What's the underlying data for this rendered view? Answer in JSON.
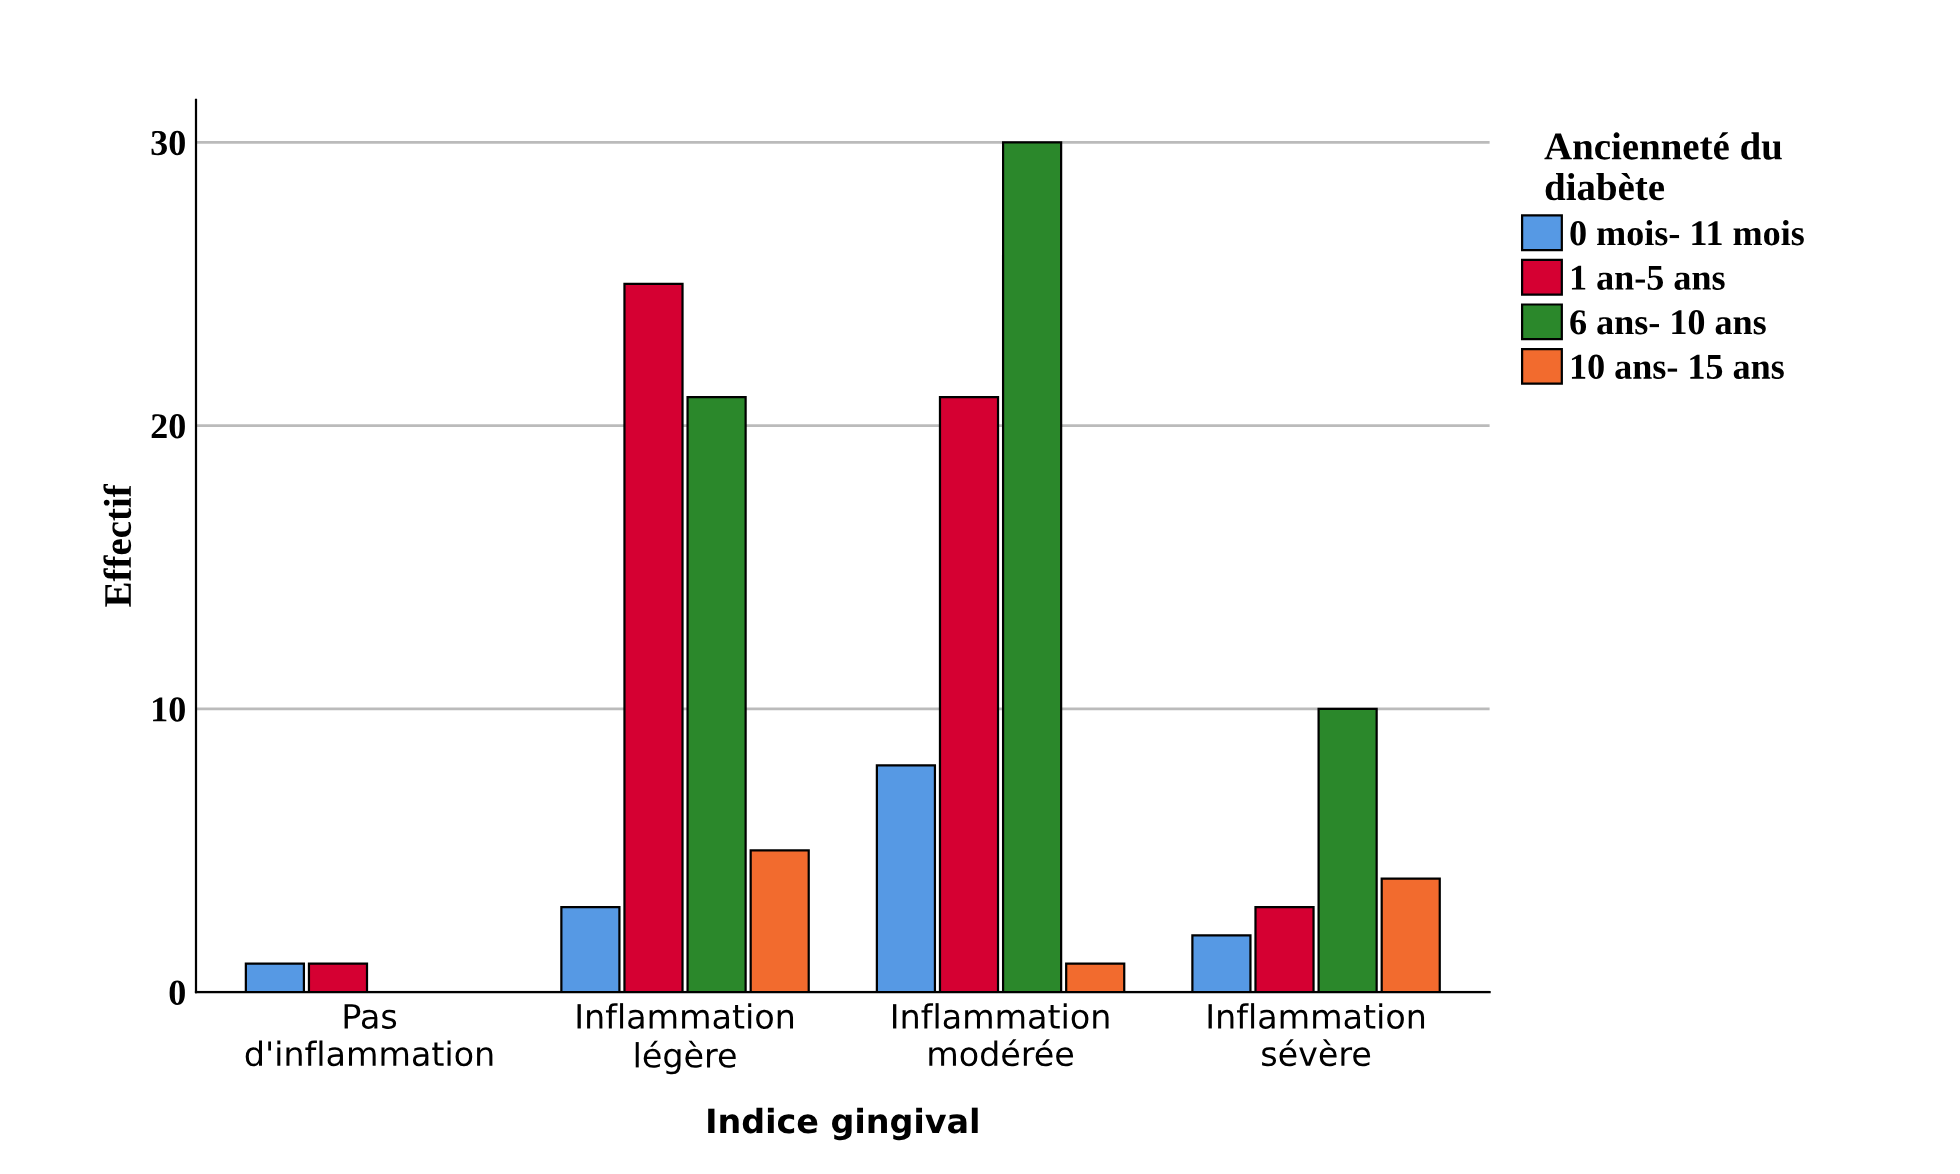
{
  "chart_data": {
    "type": "bar",
    "xlabel": "Indice gingival",
    "ylabel": "Effectif",
    "legend_title": "Ancienneté du\ndiabète",
    "categories": [
      "Pas\nd'inflammation",
      "Inflammation\nlégère",
      "Inflammation\nmodérée",
      "Inflammation\nsévère"
    ],
    "series": [
      {
        "name": "0 mois- 11 mois",
        "color": "#5699e4",
        "values": [
          1,
          3,
          8,
          2
        ]
      },
      {
        "name": "1 an-5 ans",
        "color": "#d50032",
        "values": [
          1,
          25,
          21,
          3
        ]
      },
      {
        "name": "6 ans- 10 ans",
        "color": "#2b882b",
        "values": [
          null,
          21,
          30,
          10
        ]
      },
      {
        "name": "10 ans- 15 ans",
        "color": "#f26b2e",
        "values": [
          null,
          5,
          1,
          4
        ]
      }
    ],
    "ylim": [
      0,
      31.5
    ],
    "yticks": [
      0,
      10,
      20,
      30
    ],
    "grid": "y",
    "legend": "top right"
  }
}
